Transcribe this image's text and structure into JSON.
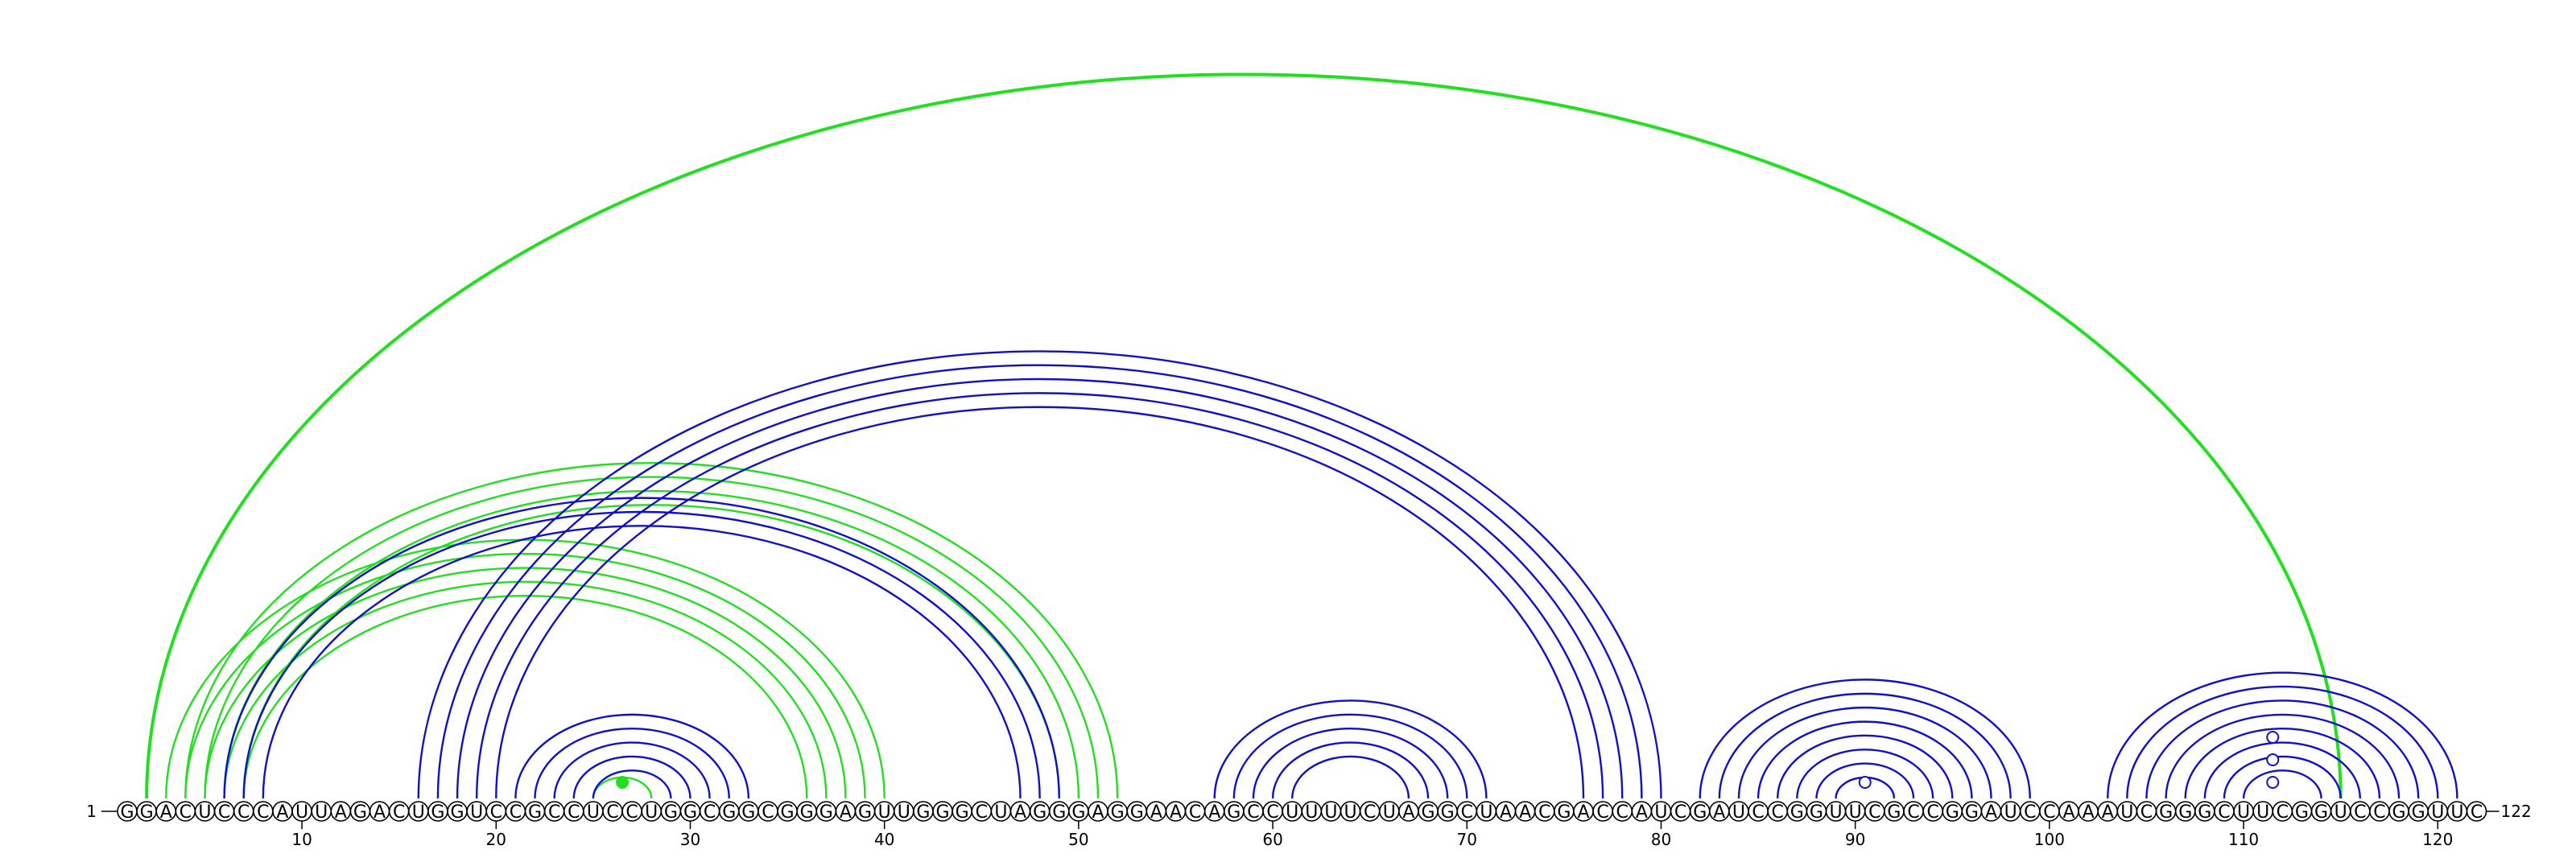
{
  "sequence": "GGACUCCCAUUAGACUGGUCCGCCUCCUGGCGGCGGGAGUUGGGCUAGGGAGGAACAGCCUUUUCUAGGCUAACGACCAUCGAUCCGGUUCGCCGGAUCCAAAUCGGGCUUCGGUCCGGUUC",
  "start_label": "1",
  "end_label": "122",
  "tick_labels": [
    "10",
    "20",
    "30",
    "40",
    "50",
    "60",
    "70",
    "80",
    "90",
    "100",
    "110",
    "120"
  ],
  "tick_positions": [
    10,
    20,
    30,
    40,
    50,
    60,
    70,
    80,
    90,
    100,
    110,
    120
  ],
  "colors": {
    "green": "#22e01f",
    "blue": "#1010cc"
  },
  "arc_groups": [
    {
      "color": "green",
      "pairs": [
        [
          2,
          115
        ]
      ]
    },
    {
      "color": "green",
      "pairs": [
        [
          4,
          52
        ],
        [
          5,
          51
        ],
        [
          6,
          50
        ],
        [
          7,
          49
        ]
      ]
    },
    {
      "color": "green",
      "pairs": [
        [
          3,
          40
        ],
        [
          4,
          39
        ],
        [
          5,
          38
        ],
        [
          6,
          37
        ],
        [
          7,
          36
        ]
      ]
    },
    {
      "color": "green",
      "pairs": [
        [
          25,
          28
        ]
      ]
    },
    {
      "color": "blue",
      "pairs": [
        [
          6,
          49
        ],
        [
          7,
          48
        ],
        [
          8,
          47
        ]
      ]
    },
    {
      "color": "blue",
      "pairs": [
        [
          16,
          80
        ],
        [
          17,
          79
        ],
        [
          18,
          78
        ],
        [
          19,
          77
        ],
        [
          20,
          76
        ]
      ]
    },
    {
      "color": "blue",
      "pairs": [
        [
          21,
          33
        ],
        [
          22,
          32
        ],
        [
          23,
          31
        ],
        [
          24,
          30
        ],
        [
          25,
          29
        ]
      ]
    },
    {
      "color": "blue",
      "pairs": [
        [
          57,
          71
        ],
        [
          58,
          70
        ],
        [
          59,
          69
        ],
        [
          60,
          68
        ],
        [
          61,
          67
        ]
      ]
    },
    {
      "color": "blue",
      "pairs": [
        [
          82,
          99
        ],
        [
          83,
          98
        ],
        [
          84,
          97
        ],
        [
          85,
          96
        ],
        [
          86,
          95
        ],
        [
          87,
          94
        ],
        [
          88,
          93
        ],
        [
          89,
          92
        ]
      ]
    },
    {
      "color": "blue",
      "pairs": [
        [
          103,
          121
        ],
        [
          104,
          120
        ],
        [
          105,
          119
        ],
        [
          106,
          118
        ],
        [
          107,
          117
        ],
        [
          108,
          116
        ],
        [
          109,
          115
        ],
        [
          110,
          114
        ]
      ]
    }
  ],
  "markers": [
    {
      "pos": 26.5,
      "color": "green",
      "filled": true,
      "level": 1
    },
    {
      "pos": 90.5,
      "color": "blue",
      "filled": false,
      "level": 1
    },
    {
      "pos": 111.5,
      "color": "blue",
      "filled": false,
      "level": 1
    },
    {
      "pos": 111.5,
      "color": "blue",
      "filled": false,
      "level": 3
    },
    {
      "pos": 111.5,
      "color": "blue",
      "filled": false,
      "level": 5
    }
  ]
}
